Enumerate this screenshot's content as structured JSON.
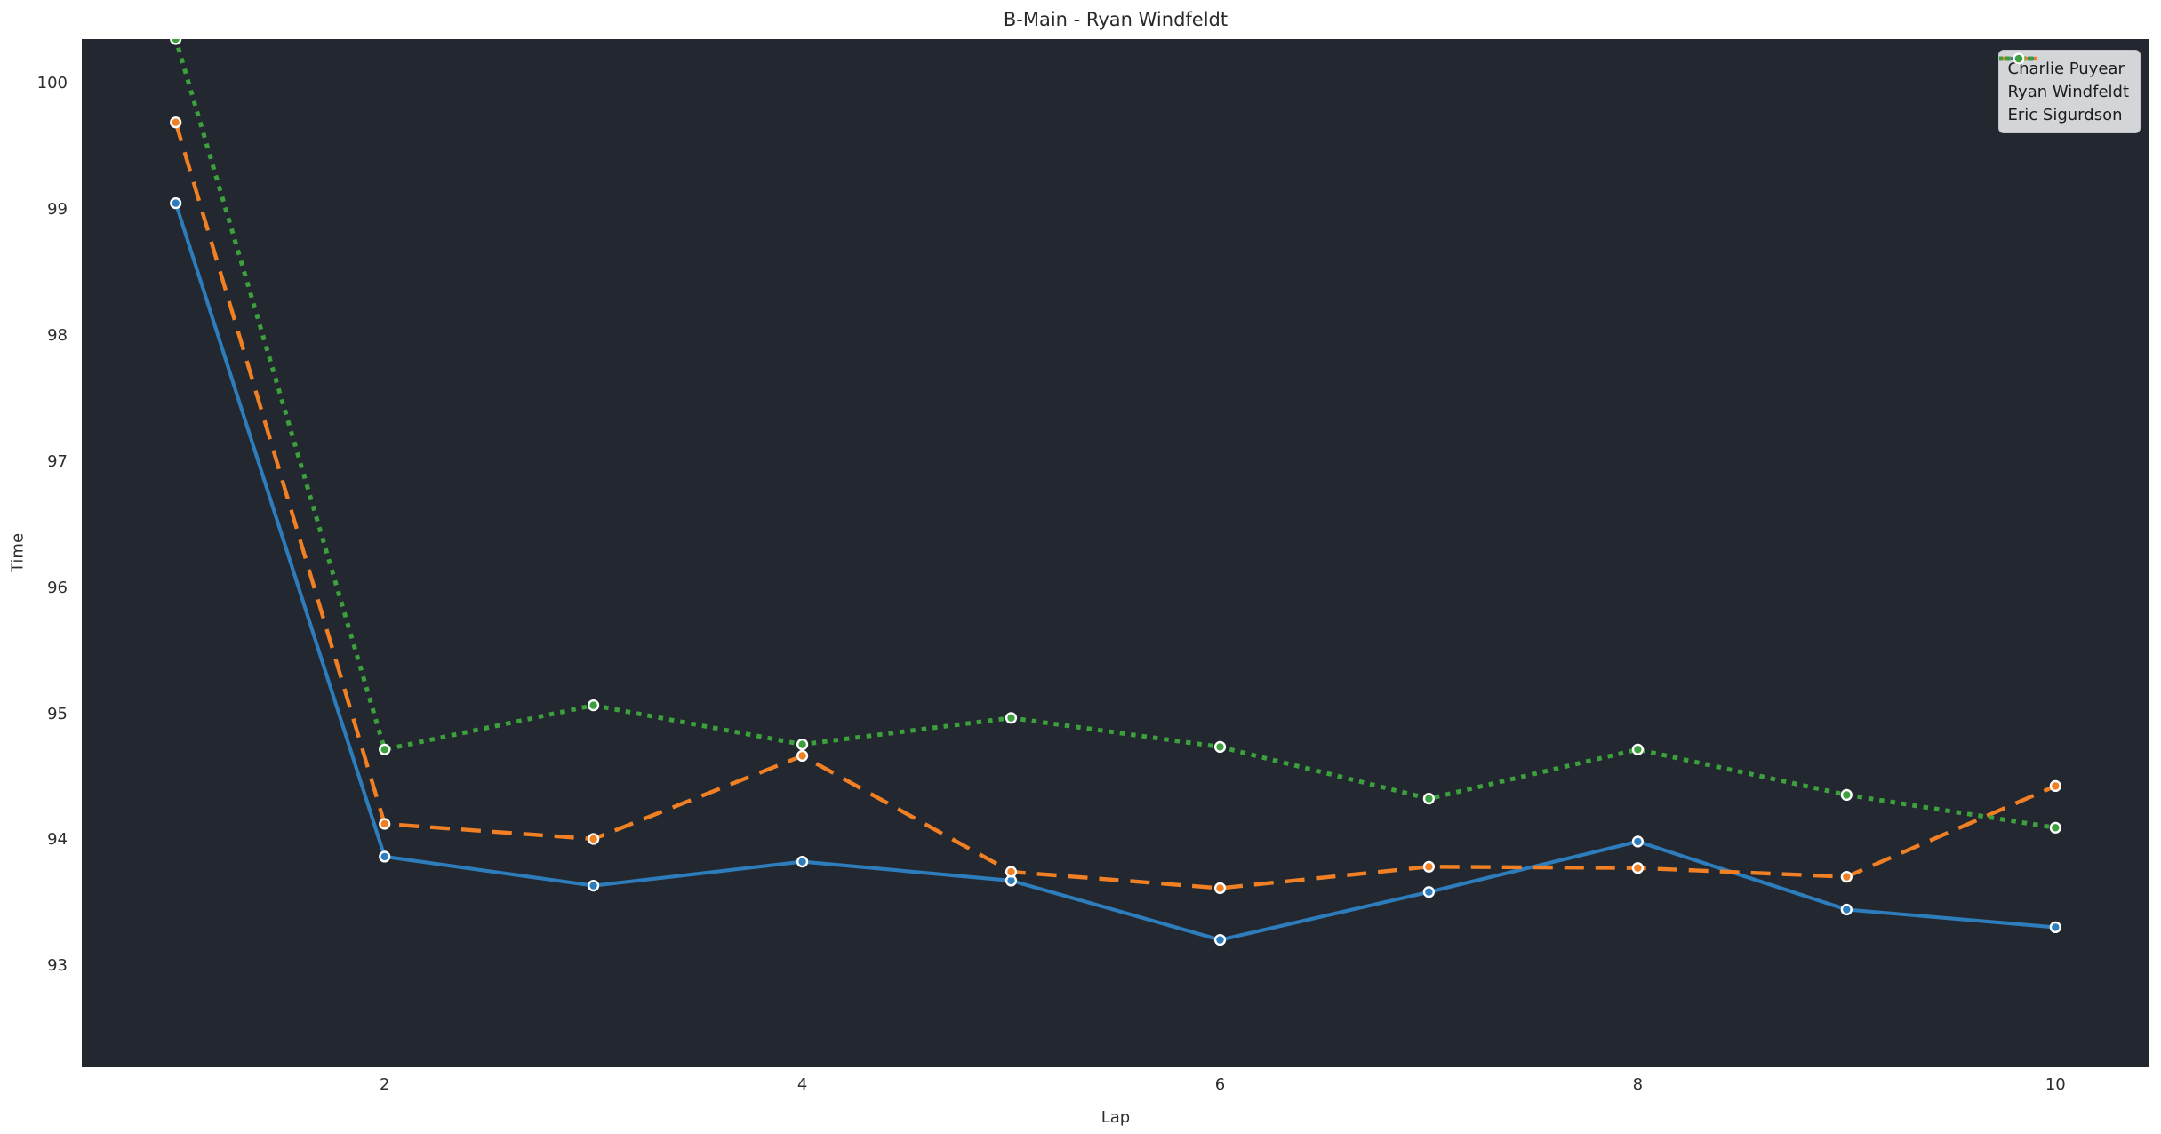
{
  "chart_data": {
    "type": "line",
    "title": "B-Main - Ryan Windfeldt",
    "xlabel": "Lap",
    "ylabel": "Time",
    "x": [
      1,
      2,
      3,
      4,
      5,
      6,
      7,
      8,
      9,
      10
    ],
    "series": [
      {
        "name": "Charlie Puyear",
        "color": "#2d7dbc",
        "line_style": "solid",
        "values": [
          99.05,
          93.87,
          93.64,
          93.83,
          93.68,
          93.21,
          93.59,
          93.99,
          93.45,
          93.31
        ]
      },
      {
        "name": "Ryan Windfeldt",
        "color": "#f08023",
        "line_style": "dashed",
        "values": [
          99.69,
          94.13,
          94.01,
          94.67,
          93.75,
          93.62,
          93.79,
          93.78,
          93.71,
          94.43
        ]
      },
      {
        "name": "Eric Sigurdson",
        "color": "#3ca03c",
        "line_style": "dotted",
        "values": [
          100.35,
          94.72,
          95.07,
          94.76,
          94.97,
          94.74,
          94.33,
          94.72,
          94.36,
          94.1
        ]
      }
    ],
    "xticks": [
      2,
      4,
      6,
      8,
      10
    ],
    "yticks": [
      93,
      94,
      95,
      96,
      97,
      98,
      99,
      100
    ],
    "xlim": [
      0.55,
      10.45
    ],
    "ylim": [
      92.2,
      100.35
    ],
    "grid": false,
    "legend_position": "upper right",
    "marker": "circle",
    "marker_edge_color": "#ffffff",
    "plot_background": "#232830",
    "page_background": "#ffffff",
    "text_color": "#2e2e2e",
    "legend_background": "#d3d5d8"
  }
}
